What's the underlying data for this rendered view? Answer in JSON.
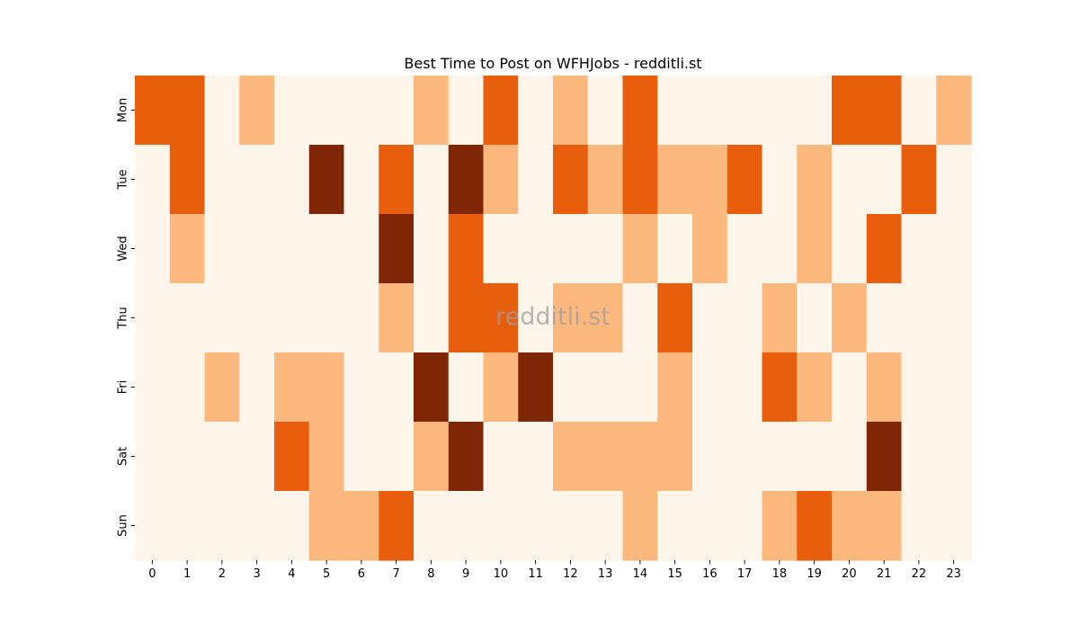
{
  "chart_data": {
    "type": "heatmap",
    "title": "Best Time to Post on WFHJobs - redditli.st",
    "watermark": "redditli.st",
    "xlabel": "",
    "ylabel": "",
    "x_categories": [
      "0",
      "1",
      "2",
      "3",
      "4",
      "5",
      "6",
      "7",
      "8",
      "9",
      "10",
      "11",
      "12",
      "13",
      "14",
      "15",
      "16",
      "17",
      "18",
      "19",
      "20",
      "21",
      "22",
      "23"
    ],
    "y_categories": [
      "Mon",
      "Tue",
      "Wed",
      "Thu",
      "Fri",
      "Sat",
      "Sun"
    ],
    "levels": [
      0,
      1,
      2,
      3
    ],
    "level_colors": [
      "#fff5eb",
      "#fdb97d",
      "#e95e0d",
      "#7f2704"
    ],
    "values": [
      [
        2,
        2,
        0,
        1,
        0,
        0,
        0,
        0,
        1,
        0,
        2,
        0,
        1,
        0,
        2,
        0,
        0,
        0,
        0,
        0,
        2,
        2,
        0,
        1
      ],
      [
        0,
        2,
        0,
        0,
        0,
        3,
        0,
        2,
        0,
        3,
        1,
        0,
        2,
        1,
        2,
        1,
        1,
        2,
        0,
        1,
        0,
        0,
        2,
        0
      ],
      [
        0,
        1,
        0,
        0,
        0,
        0,
        0,
        3,
        0,
        2,
        0,
        0,
        0,
        0,
        1,
        0,
        1,
        0,
        0,
        1,
        0,
        2,
        0,
        0
      ],
      [
        0,
        0,
        0,
        0,
        0,
        0,
        0,
        1,
        0,
        2,
        2,
        0,
        1,
        1,
        0,
        2,
        0,
        0,
        1,
        0,
        1,
        0,
        0,
        0
      ],
      [
        0,
        0,
        1,
        0,
        1,
        1,
        0,
        0,
        3,
        0,
        1,
        3,
        0,
        0,
        0,
        1,
        0,
        0,
        2,
        1,
        0,
        1,
        0,
        0
      ],
      [
        0,
        0,
        0,
        0,
        2,
        1,
        0,
        0,
        1,
        3,
        0,
        0,
        1,
        1,
        1,
        1,
        0,
        0,
        0,
        0,
        0,
        3,
        0,
        0
      ],
      [
        0,
        0,
        0,
        0,
        0,
        1,
        1,
        2,
        0,
        0,
        0,
        0,
        0,
        0,
        1,
        0,
        0,
        0,
        1,
        2,
        1,
        1,
        0,
        0
      ]
    ]
  }
}
